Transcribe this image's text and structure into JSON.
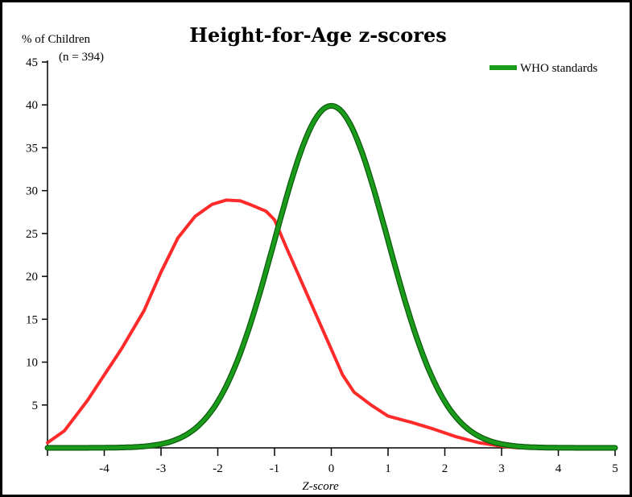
{
  "chart_data": {
    "type": "line",
    "title": "Height-for-Age z-scores",
    "ylabel": "% of Children",
    "sample_label": "(n = 394)",
    "xlabel": "Z-score",
    "xlim": [
      -5,
      5
    ],
    "ylim": [
      0,
      45
    ],
    "x_ticks": [
      -4,
      -3,
      -2,
      -1,
      0,
      1,
      2,
      3,
      4,
      5
    ],
    "y_ticks": [
      5,
      10,
      15,
      20,
      25,
      30,
      35,
      40,
      45
    ],
    "grid": false,
    "legend_position": "top-right",
    "series": [
      {
        "name": "",
        "color": "#ff2a2a",
        "points": [
          [
            -5.0,
            0.6
          ],
          [
            -4.7,
            2.0
          ],
          [
            -4.3,
            5.5
          ],
          [
            -4.0,
            8.5
          ],
          [
            -3.7,
            11.5
          ],
          [
            -3.3,
            16.0
          ],
          [
            -3.0,
            20.5
          ],
          [
            -2.7,
            24.5
          ],
          [
            -2.4,
            27.0
          ],
          [
            -2.1,
            28.4
          ],
          [
            -1.85,
            28.9
          ],
          [
            -1.6,
            28.8
          ],
          [
            -1.4,
            28.3
          ],
          [
            -1.15,
            27.6
          ],
          [
            -1.0,
            26.6
          ],
          [
            -0.8,
            23.5
          ],
          [
            -0.5,
            19.0
          ],
          [
            -0.2,
            14.5
          ],
          [
            0.0,
            11.5
          ],
          [
            0.2,
            8.5
          ],
          [
            0.4,
            6.5
          ],
          [
            0.7,
            5.0
          ],
          [
            1.0,
            3.7
          ],
          [
            1.4,
            3.0
          ],
          [
            1.8,
            2.2
          ],
          [
            2.2,
            1.3
          ],
          [
            2.6,
            0.6
          ],
          [
            3.0,
            0.2
          ],
          [
            3.3,
            0.0
          ]
        ]
      },
      {
        "name": "WHO standards",
        "color": "#1a9c1a",
        "distribution": {
          "mean": 0,
          "sd": 1,
          "peak": 39.9
        },
        "x_range": [
          -5,
          5
        ]
      }
    ]
  }
}
